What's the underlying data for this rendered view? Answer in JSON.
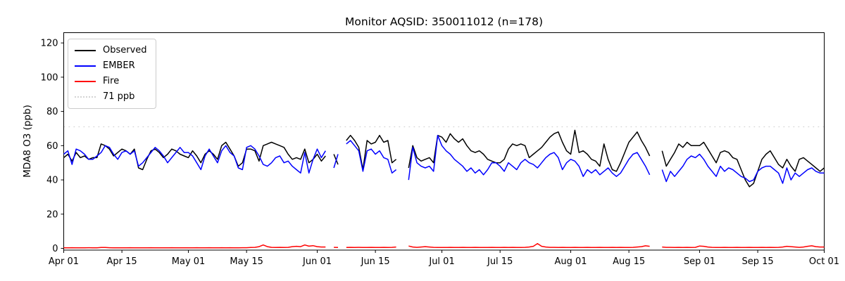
{
  "colors": {
    "observed": "#000000",
    "ember": "#0000ff",
    "fire": "#ff0000",
    "threshold": "#d3d3d3",
    "spine": "#000000",
    "text": "#000000",
    "background": "#ffffff"
  },
  "chart_data": {
    "type": "line",
    "title": "Monitor AQSID: 350011012 (n=178)",
    "xlabel": "",
    "ylabel": "MDA8 O3 (ppb)",
    "ylim": [
      -1,
      126
    ],
    "yticks": [
      0,
      20,
      40,
      60,
      80,
      100,
      120
    ],
    "grid": false,
    "legend_position": "upper-left",
    "n_label": "n=178",
    "x_unit": "day index from Apr 01",
    "n_days": 184,
    "xticks": [
      {
        "day": 0,
        "label": "Apr 01"
      },
      {
        "day": 14,
        "label": "Apr 15"
      },
      {
        "day": 30,
        "label": "May 01"
      },
      {
        "day": 44,
        "label": "May 15"
      },
      {
        "day": 61,
        "label": "Jun 01"
      },
      {
        "day": 75,
        "label": "Jun 15"
      },
      {
        "day": 91,
        "label": "Jul 01"
      },
      {
        "day": 105,
        "label": "Jul 15"
      },
      {
        "day": 122,
        "label": "Aug 01"
      },
      {
        "day": 136,
        "label": "Aug 15"
      },
      {
        "day": 153,
        "label": "Sep 01"
      },
      {
        "day": 167,
        "label": "Sep 15"
      },
      {
        "day": 183,
        "label": "Oct 01"
      }
    ],
    "threshold": {
      "value": 71,
      "label": "71 ppb",
      "style": "dotted"
    },
    "legend": [
      {
        "label": "Observed",
        "color": "#000000",
        "style": "solid"
      },
      {
        "label": "EMBER",
        "color": "#0000ff",
        "style": "solid"
      },
      {
        "label": "Fire",
        "color": "#ff0000",
        "style": "solid"
      },
      {
        "label": "71 ppb",
        "color": "#d3d3d3",
        "style": "dotted"
      }
    ],
    "series": [
      {
        "name": "Observed",
        "color": "#000000",
        "values": [
          53,
          55,
          51,
          56,
          53,
          54,
          52,
          53,
          53,
          61,
          60,
          58,
          54,
          56,
          58,
          57,
          55,
          58,
          47,
          46,
          52,
          57,
          58,
          56,
          53,
          55,
          58,
          57,
          55,
          54,
          53,
          57,
          54,
          50,
          55,
          57,
          55,
          52,
          60,
          62,
          58,
          54,
          48,
          50,
          58,
          58,
          57,
          51,
          60,
          61,
          62,
          61,
          60,
          59,
          55,
          52,
          53,
          52,
          58,
          50,
          52,
          55,
          51,
          54,
          null,
          55,
          49,
          null,
          63,
          66,
          63,
          59,
          46,
          63,
          61,
          62,
          66,
          62,
          63,
          50,
          52,
          null,
          null,
          47,
          60,
          53,
          51,
          52,
          53,
          50,
          66,
          65,
          62,
          67,
          64,
          62,
          64,
          60,
          57,
          56,
          57,
          55,
          52,
          51,
          50,
          50,
          52,
          58,
          61,
          60,
          61,
          60,
          53,
          55,
          57,
          59,
          62,
          65,
          67,
          68,
          62,
          57,
          55,
          69,
          56,
          57,
          55,
          52,
          51,
          48,
          61,
          52,
          46,
          45,
          50,
          56,
          62,
          65,
          68,
          63,
          59,
          54,
          null,
          null,
          57,
          48,
          52,
          56,
          61,
          59,
          62,
          60,
          60,
          60,
          62,
          58,
          54,
          50,
          56,
          57,
          56,
          53,
          52,
          46,
          40,
          36,
          38,
          45,
          52,
          55,
          57,
          53,
          49,
          47,
          52,
          48,
          45,
          52,
          53,
          51,
          49,
          47,
          45,
          47
        ]
      },
      {
        "name": "EMBER",
        "color": "#0000ff",
        "values": [
          55,
          57,
          49,
          58,
          57,
          55,
          52,
          52,
          54,
          56,
          60,
          59,
          55,
          52,
          56,
          57,
          55,
          57,
          48,
          50,
          53,
          56,
          59,
          57,
          54,
          50,
          53,
          56,
          59,
          56,
          56,
          54,
          50,
          46,
          54,
          58,
          54,
          50,
          57,
          60,
          56,
          54,
          47,
          46,
          59,
          60,
          58,
          54,
          49,
          48,
          50,
          53,
          54,
          50,
          51,
          48,
          46,
          44,
          56,
          44,
          52,
          58,
          53,
          57,
          null,
          47,
          55,
          null,
          61,
          63,
          60,
          57,
          45,
          57,
          58,
          55,
          57,
          53,
          52,
          44,
          46,
          null,
          null,
          40,
          59,
          50,
          48,
          47,
          48,
          45,
          66,
          60,
          57,
          55,
          52,
          50,
          48,
          45,
          47,
          44,
          46,
          43,
          46,
          50,
          50,
          48,
          45,
          50,
          48,
          46,
          50,
          52,
          50,
          49,
          47,
          50,
          53,
          55,
          56,
          53,
          46,
          50,
          52,
          51,
          48,
          42,
          46,
          44,
          46,
          43,
          45,
          47,
          44,
          42,
          44,
          48,
          52,
          55,
          56,
          52,
          48,
          43,
          null,
          null,
          46,
          39,
          45,
          42,
          45,
          48,
          52,
          54,
          53,
          55,
          52,
          48,
          45,
          42,
          48,
          45,
          47,
          46,
          44,
          42,
          41,
          39,
          40,
          45,
          47,
          48,
          48,
          46,
          44,
          38,
          47,
          40,
          44,
          42,
          44,
          46,
          47,
          45,
          44,
          44
        ]
      },
      {
        "name": "Fire",
        "color": "#ff0000",
        "values": [
          0.3,
          0.3,
          0.4,
          0.3,
          0.3,
          0.3,
          0.4,
          0.3,
          0.3,
          0.5,
          0.5,
          0.4,
          0.3,
          0.3,
          0.3,
          0.3,
          0.4,
          0.3,
          0.3,
          0.3,
          0.3,
          0.4,
          0.3,
          0.3,
          0.3,
          0.3,
          0.4,
          0.3,
          0.3,
          0.3,
          0.3,
          0.3,
          0.4,
          0.3,
          0.3,
          0.4,
          0.3,
          0.3,
          0.4,
          0.3,
          0.4,
          0.3,
          0.3,
          0.4,
          0.4,
          0.5,
          0.6,
          1.0,
          2.0,
          1.0,
          0.6,
          0.5,
          0.6,
          0.5,
          0.6,
          1.0,
          1.2,
          1.0,
          2.0,
          1.3,
          1.6,
          1.0,
          0.8,
          0.8,
          null,
          0.6,
          0.5,
          null,
          0.5,
          0.6,
          0.5,
          0.6,
          0.5,
          0.5,
          0.6,
          0.5,
          0.5,
          0.6,
          0.5,
          0.6,
          0.8,
          null,
          null,
          1.4,
          0.8,
          0.6,
          0.8,
          1.0,
          0.8,
          0.6,
          0.5,
          0.5,
          0.5,
          0.6,
          0.5,
          0.5,
          0.6,
          0.5,
          0.5,
          0.6,
          0.5,
          0.5,
          0.5,
          0.6,
          0.5,
          0.5,
          0.6,
          0.5,
          0.6,
          0.5,
          0.5,
          0.6,
          0.8,
          1.2,
          2.8,
          1.2,
          0.8,
          0.6,
          0.6,
          0.5,
          0.6,
          0.5,
          0.5,
          0.6,
          0.5,
          0.5,
          0.6,
          0.5,
          0.5,
          0.6,
          0.5,
          0.5,
          0.6,
          0.5,
          0.6,
          0.5,
          0.5,
          0.6,
          0.8,
          1.0,
          1.5,
          1.2,
          null,
          null,
          0.8,
          0.6,
          0.6,
          0.5,
          0.6,
          0.5,
          0.6,
          0.5,
          0.6,
          1.4,
          1.2,
          0.8,
          0.6,
          0.5,
          0.5,
          0.6,
          0.5,
          0.5,
          0.6,
          0.5,
          0.5,
          0.6,
          0.5,
          0.5,
          0.6,
          0.5,
          0.6,
          0.5,
          0.6,
          0.8,
          1.2,
          1.0,
          0.8,
          0.6,
          0.8,
          1.2,
          1.5,
          1.0,
          0.8,
          0.8
        ]
      }
    ]
  }
}
